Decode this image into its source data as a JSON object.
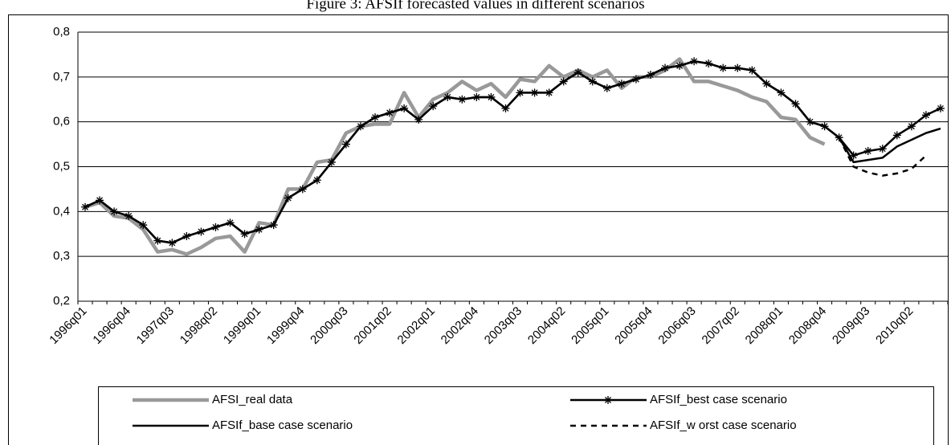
{
  "chart_data": {
    "type": "line",
    "title": "Figure 3: AFSIf forecasted values in different scenarios",
    "categories": [
      "1996q01",
      null,
      null,
      "1996q04",
      null,
      null,
      "1997q03",
      null,
      null,
      "1998q02",
      null,
      null,
      "1999q01",
      null,
      null,
      "1999q04",
      null,
      null,
      "2000q03",
      null,
      null,
      "2001q02",
      null,
      null,
      "2002q01",
      null,
      null,
      "2002q04",
      null,
      null,
      "2003q03",
      null,
      null,
      "2004q02",
      null,
      null,
      "2005q01",
      null,
      null,
      "2005q04",
      null,
      null,
      "2006q03",
      null,
      null,
      "2007q02",
      null,
      null,
      "2008q01",
      null,
      null,
      "2008q04",
      null,
      null,
      "2009q03",
      null,
      null,
      "2010q02",
      null,
      null
    ],
    "ylim": [
      0.2,
      0.8
    ],
    "yticks": [
      {
        "value": 0.2,
        "label": "0,2"
      },
      {
        "value": 0.3,
        "label": "0,3"
      },
      {
        "value": 0.4,
        "label": "0,4"
      },
      {
        "value": 0.5,
        "label": "0,5"
      },
      {
        "value": 0.6,
        "label": "0,6"
      },
      {
        "value": 0.7,
        "label": "0,7"
      },
      {
        "value": 0.8,
        "label": "0,8"
      }
    ],
    "grid": true,
    "legend": "bottom",
    "series": [
      {
        "name": "AFSI_real data",
        "color": "#999999",
        "style": "thick",
        "values": [
          0.41,
          0.42,
          0.39,
          0.385,
          0.36,
          0.31,
          0.315,
          0.305,
          0.32,
          0.34,
          0.345,
          0.31,
          0.375,
          0.37,
          0.45,
          0.45,
          0.51,
          0.515,
          0.575,
          0.59,
          0.595,
          0.595,
          0.665,
          0.61,
          0.65,
          0.665,
          0.69,
          0.67,
          0.685,
          0.655,
          0.695,
          0.69,
          0.725,
          0.7,
          0.715,
          0.7,
          0.715,
          0.675,
          0.7,
          0.7,
          0.715,
          0.74,
          0.69,
          0.69,
          0.68,
          0.67,
          0.655,
          0.645,
          0.61,
          0.605,
          0.565,
          0.55,
          null,
          null,
          null,
          null,
          null,
          null,
          null,
          null
        ]
      },
      {
        "name": "AFSIf_best case scenario",
        "color": "#000000",
        "style": "star",
        "values": [
          0.41,
          0.425,
          0.4,
          0.39,
          0.37,
          0.335,
          0.33,
          0.345,
          0.355,
          0.365,
          0.375,
          0.35,
          0.36,
          0.37,
          0.43,
          0.45,
          0.47,
          0.51,
          0.55,
          0.59,
          0.61,
          0.62,
          0.63,
          0.605,
          0.635,
          0.655,
          0.65,
          0.655,
          0.655,
          0.63,
          0.665,
          0.665,
          0.665,
          0.69,
          0.71,
          0.69,
          0.675,
          0.685,
          0.695,
          0.705,
          0.72,
          0.725,
          0.735,
          0.73,
          0.72,
          0.72,
          0.715,
          0.685,
          0.665,
          0.64,
          0.6,
          0.59,
          0.565,
          0.525,
          0.535,
          0.54,
          0.57,
          0.59,
          0.615,
          0.63
        ]
      },
      {
        "name": "AFSIf_base case scenario",
        "color": "#000000",
        "style": "solid",
        "values": [
          0.41,
          0.425,
          0.4,
          0.39,
          0.37,
          0.335,
          0.33,
          0.345,
          0.355,
          0.365,
          0.375,
          0.35,
          0.36,
          0.37,
          0.43,
          0.45,
          0.47,
          0.51,
          0.55,
          0.59,
          0.61,
          0.62,
          0.63,
          0.605,
          0.635,
          0.655,
          0.65,
          0.655,
          0.655,
          0.63,
          0.665,
          0.665,
          0.665,
          0.69,
          0.71,
          0.69,
          0.675,
          0.685,
          0.695,
          0.705,
          0.72,
          0.725,
          0.735,
          0.73,
          0.72,
          0.72,
          0.715,
          0.685,
          0.665,
          0.64,
          0.6,
          0.59,
          0.565,
          0.51,
          0.515,
          0.52,
          0.545,
          0.56,
          0.575,
          0.585
        ]
      },
      {
        "name": "AFSIf_w orst case scenario",
        "color": "#000000",
        "style": "dashed",
        "values": [
          null,
          null,
          null,
          null,
          null,
          null,
          null,
          null,
          null,
          null,
          null,
          null,
          null,
          null,
          null,
          null,
          null,
          null,
          null,
          null,
          null,
          null,
          null,
          null,
          null,
          null,
          null,
          null,
          null,
          null,
          null,
          null,
          null,
          null,
          null,
          null,
          null,
          null,
          null,
          null,
          null,
          null,
          null,
          null,
          null,
          null,
          null,
          null,
          null,
          null,
          null,
          null,
          0.565,
          0.5,
          0.487,
          0.48,
          0.485,
          0.495,
          0.525,
          null
        ]
      }
    ]
  }
}
